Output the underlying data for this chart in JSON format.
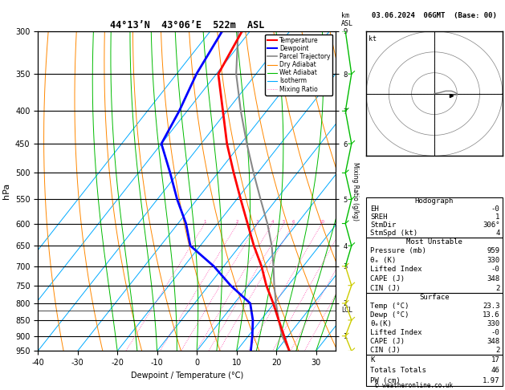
{
  "title_main": "44°13’N  43°06’E  522m  ASL",
  "title_right": "03.06.2024  06GMT  (Base: 00)",
  "xlabel": "Dewpoint / Temperature (°C)",
  "ylabel_left": "hPa",
  "p_min": 300,
  "p_max": 950,
  "T_min": -40,
  "T_max": 35,
  "pressure_levels": [
    300,
    350,
    400,
    450,
    500,
    550,
    600,
    650,
    700,
    750,
    800,
    850,
    900,
    950
  ],
  "isotherm_color": "#00aaff",
  "dry_adiabat_color": "#ff8800",
  "wet_adiabat_color": "#00bb00",
  "mixing_ratio_color": "#ff44aa",
  "temp_color": "#ff0000",
  "dewp_color": "#0000ff",
  "parcel_color": "#888888",
  "temp_profile_p": [
    950,
    900,
    850,
    800,
    750,
    700,
    650,
    600,
    550,
    500,
    450,
    400,
    350,
    300
  ],
  "temp_profile_T": [
    23.3,
    19.0,
    14.5,
    9.8,
    4.5,
    -0.5,
    -6.5,
    -12.5,
    -19.0,
    -26.0,
    -33.5,
    -41.0,
    -49.5,
    -52.0
  ],
  "dewp_profile_T": [
    13.6,
    11.0,
    8.0,
    4.0,
    -4.5,
    -12.5,
    -22.5,
    -28.0,
    -35.0,
    -42.0,
    -50.0,
    -52.0,
    -55.0,
    -57.0
  ],
  "parcel_profile_T": [
    23.3,
    18.5,
    14.5,
    10.5,
    6.5,
    2.5,
    -2.0,
    -7.5,
    -14.0,
    -21.0,
    -28.5,
    -36.5,
    -45.0,
    -53.0
  ],
  "mixing_ratio_values": [
    1,
    2,
    3,
    4,
    5,
    6,
    10,
    15,
    20,
    25
  ],
  "lcl_pressure": 820,
  "km_pressure_ticks": [
    300,
    350,
    400,
    450,
    500,
    550,
    600,
    650,
    700,
    750,
    800,
    900
  ],
  "km_values": [
    9,
    8,
    7,
    6,
    6,
    5,
    5,
    4,
    3,
    3,
    2,
    1
  ],
  "stats_K": 17,
  "stats_TT": 46,
  "stats_PW": 1.97,
  "stats_surf_temp": 23.3,
  "stats_surf_dewp": 13.6,
  "stats_surf_theta_e": 330,
  "stats_surf_li": "-0",
  "stats_surf_cape": 348,
  "stats_surf_cin": 2,
  "stats_mu_press": 959,
  "stats_mu_theta_e": 330,
  "stats_mu_li": "-0",
  "stats_mu_cape": 348,
  "stats_mu_cin": 2,
  "stats_eh": "-0",
  "stats_sreh": 1,
  "stats_stmdir": "306°",
  "stats_stmspd": 4,
  "copyright": "© weatheronline.co.uk",
  "hodo_u": [
    0,
    1,
    2,
    3,
    3.5,
    4,
    4,
    3
  ],
  "hodo_v": [
    0,
    0.2,
    0.5,
    0.5,
    0.3,
    0.0,
    -0.2,
    -0.3
  ],
  "wind_barb_p": [
    950,
    900,
    850,
    800,
    750,
    700,
    650,
    600,
    550,
    500,
    450,
    400,
    350,
    300
  ],
  "wind_barb_col": [
    "#cccc00",
    "#cccc00",
    "#cccc00",
    "#cccc00",
    "#cccc00",
    "#cccc00",
    "#00bb00",
    "#00bb00",
    "#00bb00",
    "#00bb00",
    "#00bb00",
    "#00bb00",
    "#00bb00",
    "#00bb00"
  ]
}
